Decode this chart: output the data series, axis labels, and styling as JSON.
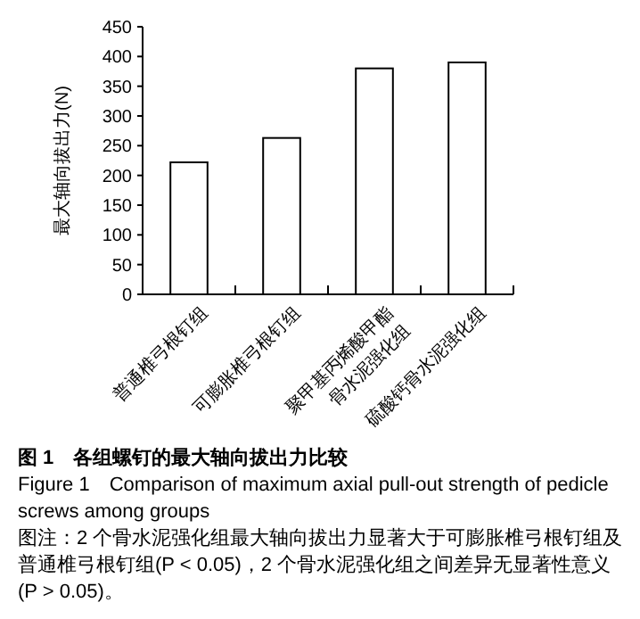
{
  "chart_data": {
    "type": "bar",
    "title": "图 1　各组螺钉的最大轴向拔出力比较",
    "subtitle": "Figure 1　Comparison of maximum axial pull-out strength of pedicle screws among groups",
    "annotations": [
      "图注：2 个骨水泥强化组最大轴向拔出力显著大于可膨胀椎弓根钉组及普通椎弓根钉组(P < 0.05)，2 个骨水泥强化组之间差异无显著性意义(P > 0.05)。"
    ],
    "ylabel": "最大轴向拔出力(N)",
    "categories": [
      "普通椎弓根钉组",
      "可膨胀椎弓根钉组",
      "聚甲基丙烯酸甲酯\n骨水泥强化组",
      "硫酸钙骨水泥强化组"
    ],
    "values": [
      222,
      263,
      380,
      390
    ],
    "color": "#ffffff",
    "ylim": [
      0,
      450
    ],
    "yticks": [
      0,
      50,
      100,
      150,
      200,
      250,
      300,
      350,
      400,
      450
    ],
    "grid": false
  }
}
